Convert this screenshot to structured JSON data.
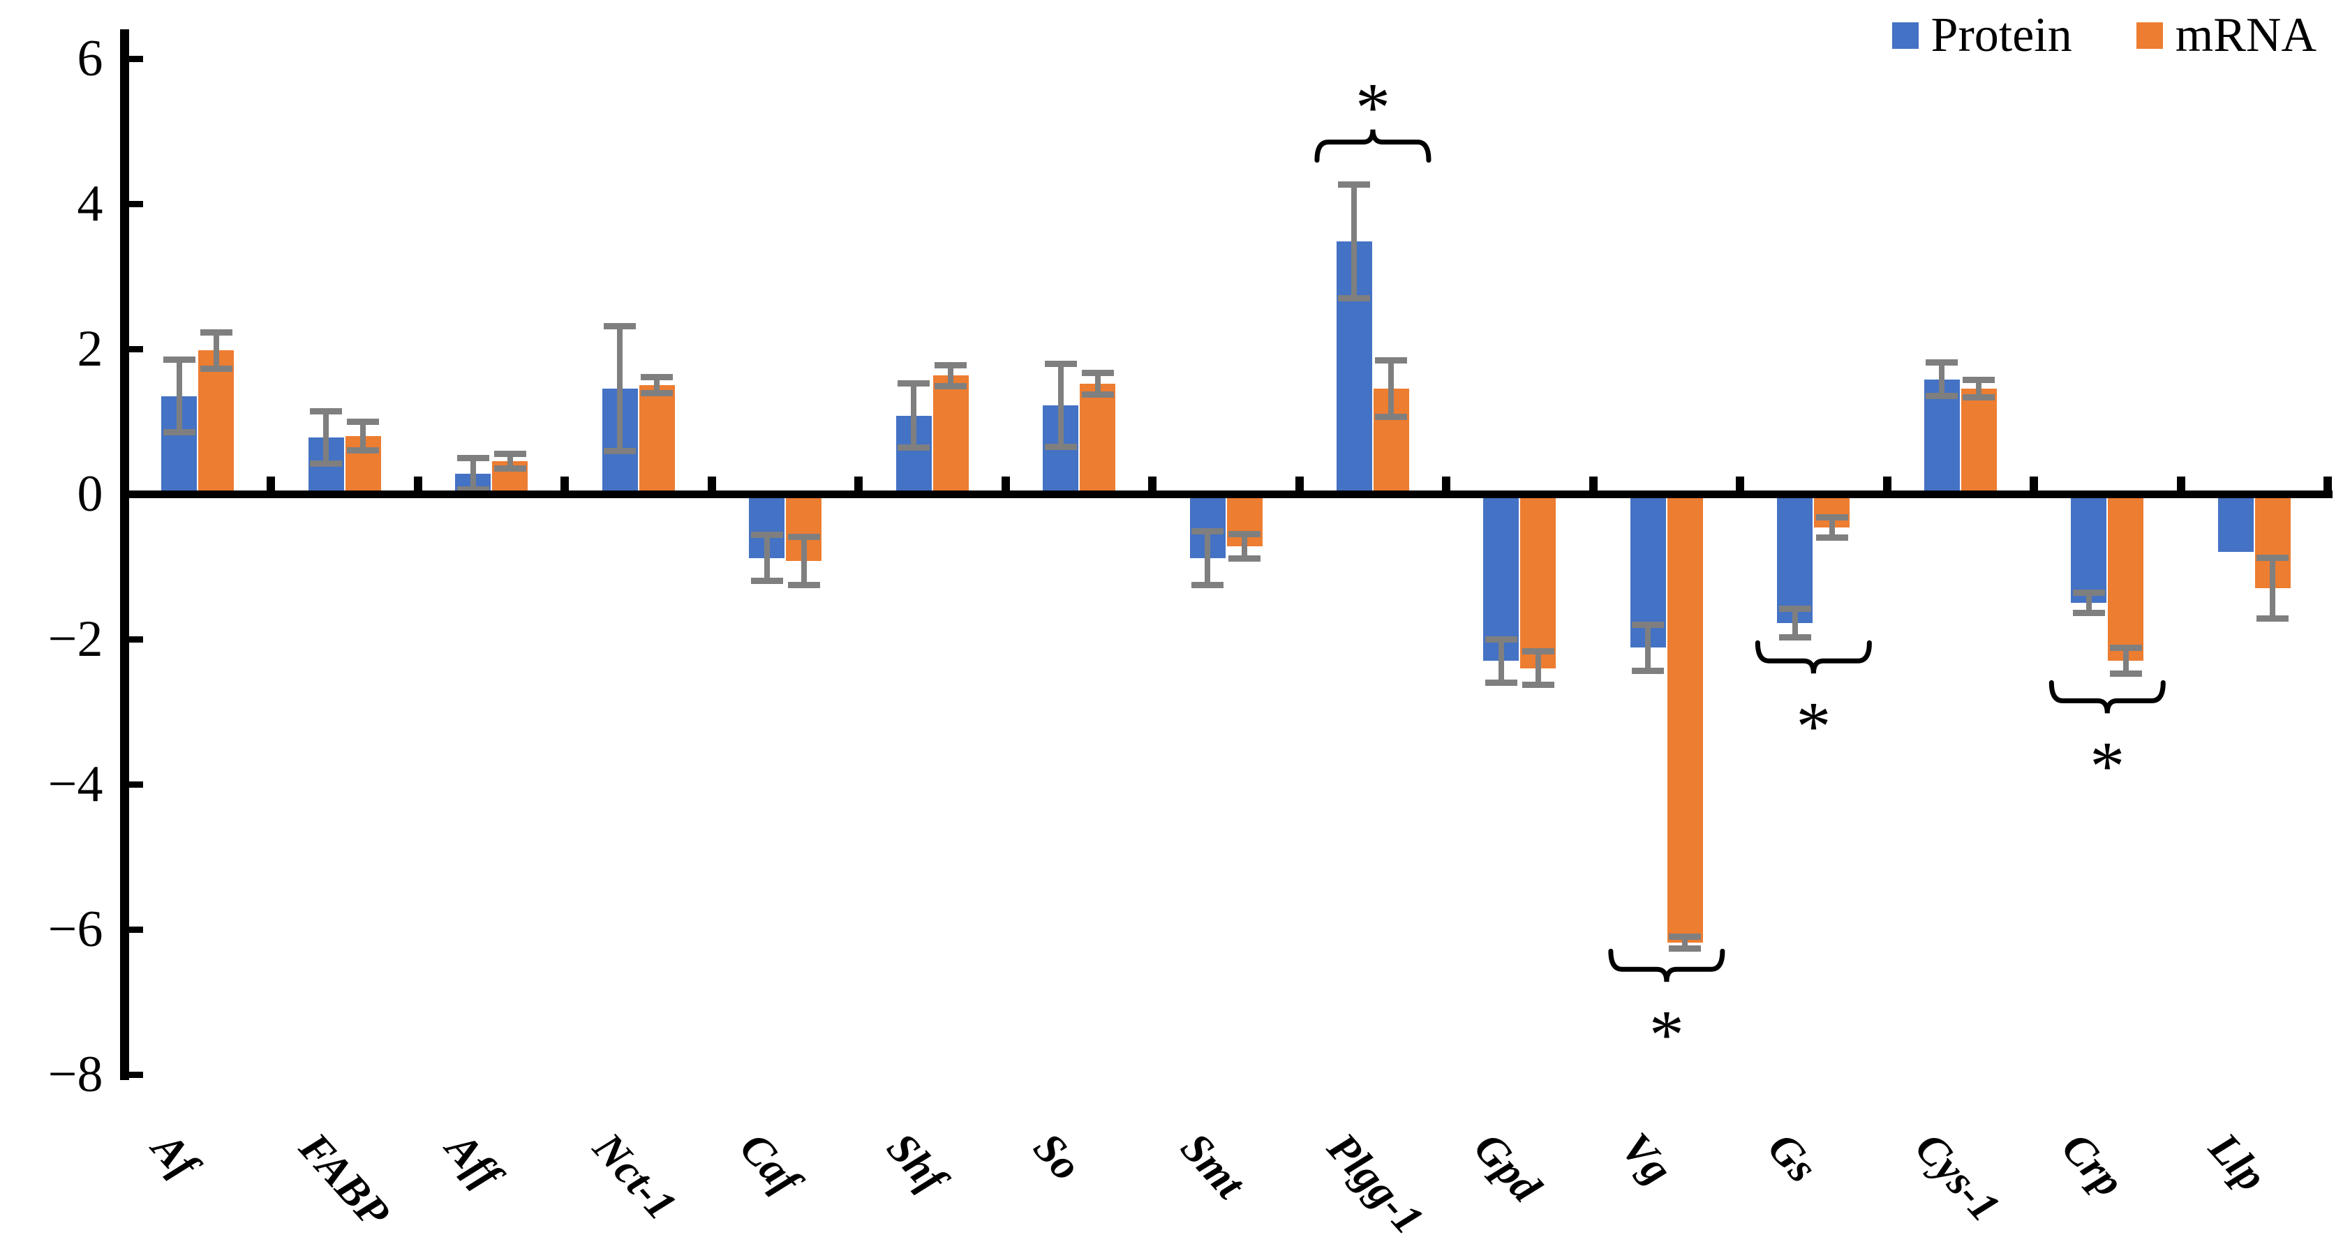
{
  "chart_data": {
    "type": "bar",
    "title": "",
    "xlabel": "",
    "ylabel": "",
    "categories": [
      "Af",
      "FABP",
      "Aff",
      "Nct-1",
      "Caf",
      "Shf",
      "So",
      "Smt",
      "Plgg-1",
      "Gpd",
      "Vg",
      "Gs",
      "Cys-1",
      "Crp",
      "Llp"
    ],
    "series": [
      {
        "name": "Protein",
        "color": "#4472C4",
        "values": [
          1.35,
          0.78,
          0.28,
          1.45,
          -0.88,
          1.08,
          1.22,
          -0.88,
          3.48,
          -2.3,
          -2.12,
          -1.78,
          1.58,
          -1.5,
          -0.8
        ],
        "errors": [
          0.5,
          0.36,
          0.22,
          0.86,
          0.32,
          0.44,
          0.57,
          0.37,
          0.78,
          0.3,
          0.32,
          0.2,
          0.23,
          0.14,
          0
        ]
      },
      {
        "name": "mRNA",
        "color": "#ED7D31",
        "values": [
          1.98,
          0.8,
          0.45,
          1.5,
          -0.92,
          1.63,
          1.52,
          -0.72,
          1.45,
          -2.4,
          -6.18,
          -0.46,
          1.45,
          -2.3,
          -1.3
        ],
        "errors": [
          0.25,
          0.2,
          0.1,
          0.11,
          0.33,
          0.14,
          0.15,
          0.17,
          0.39,
          0.23,
          0.08,
          0.14,
          0.12,
          0.18,
          0.42
        ]
      }
    ],
    "ylim": [
      -8,
      6
    ],
    "yticks": [
      {
        "value": 6,
        "label": "6"
      },
      {
        "value": 4,
        "label": "4"
      },
      {
        "value": 2,
        "label": "2"
      },
      {
        "value": 0,
        "label": "0"
      },
      {
        "value": -2,
        "label": "−2"
      },
      {
        "value": -4,
        "label": "−4"
      },
      {
        "value": -6,
        "label": "−6"
      },
      {
        "value": -8,
        "label": "−8"
      }
    ],
    "grid": false,
    "legend_position": "top-right",
    "axis_color": "#000000",
    "error_bar_color": "#7F7F7F",
    "significance": [
      {
        "category": "Plgg-1",
        "side": "above",
        "level": 4.85,
        "symbol": "*"
      },
      {
        "category": "Vg",
        "side": "below",
        "level": -6.55,
        "symbol": "*"
      },
      {
        "category": "Gs",
        "side": "below",
        "level": -2.3,
        "symbol": "*"
      },
      {
        "category": "Crp",
        "side": "below",
        "level": -2.85,
        "symbol": "*"
      }
    ]
  }
}
